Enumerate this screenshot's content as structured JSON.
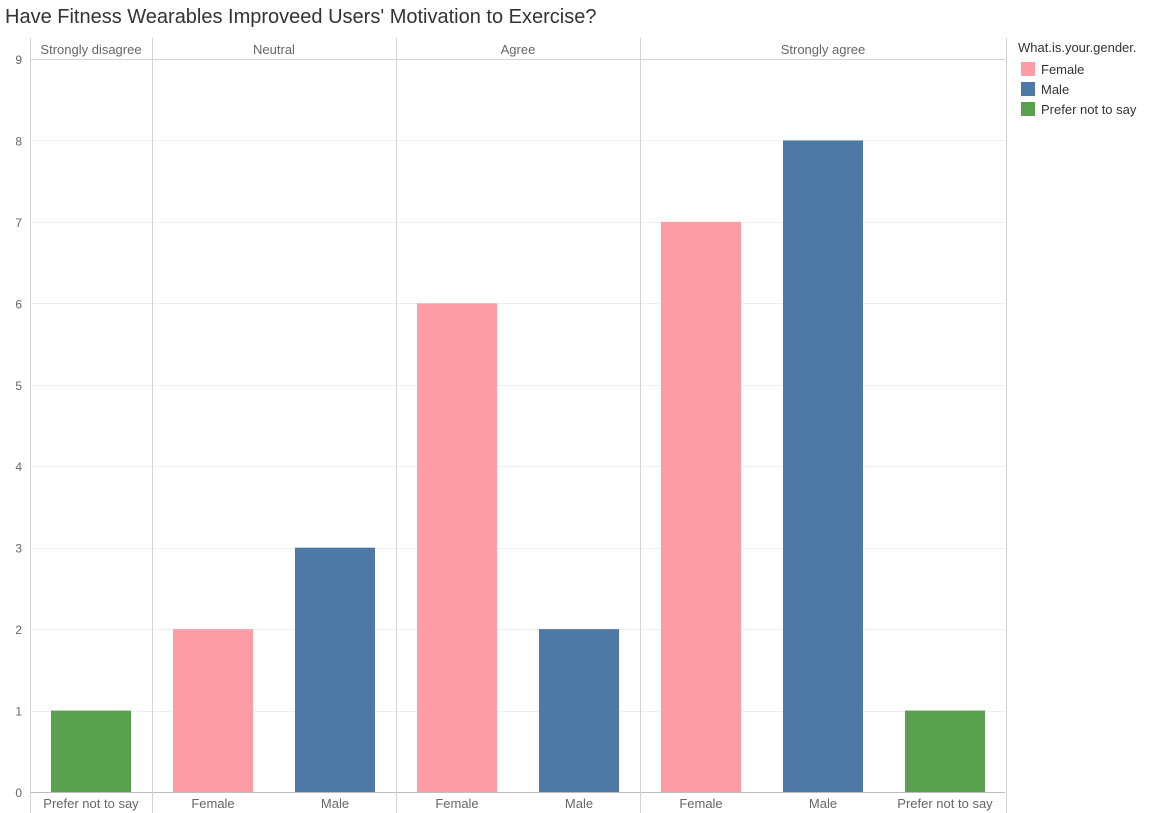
{
  "title": "Have Fitness Wearables Improveed Users' Motivation to Exercise?",
  "colors": {
    "Female": "#ff9da7",
    "Male": "#4e79a7",
    "Prefer not to say": "#59a14f"
  },
  "legend": {
    "title": "What.is.your.gender.",
    "items": [
      {
        "label": "Female",
        "color": "#ff9da7"
      },
      {
        "label": "Male",
        "color": "#4e79a7"
      },
      {
        "label": "Prefer not to say",
        "color": "#59a14f"
      }
    ],
    "placement": "right"
  },
  "chart_data": {
    "type": "bar",
    "title": "Have Fitness Wearables Improveed Users' Motivation to Exercise?",
    "xlabel": "",
    "ylabel": "",
    "ylim": [
      0,
      9
    ],
    "yticks": [
      0,
      1,
      2,
      3,
      4,
      5,
      6,
      7,
      8,
      9
    ],
    "grid": true,
    "panels": [
      {
        "label": "Strongly disagree",
        "bars": [
          {
            "category": "Prefer not to say",
            "value": 1
          }
        ]
      },
      {
        "label": "Neutral",
        "bars": [
          {
            "category": "Female",
            "value": 2
          },
          {
            "category": "Male",
            "value": 3
          }
        ]
      },
      {
        "label": "Agree",
        "bars": [
          {
            "category": "Female",
            "value": 6
          },
          {
            "category": "Male",
            "value": 2
          }
        ]
      },
      {
        "label": "Strongly agree",
        "bars": [
          {
            "category": "Female",
            "value": 7
          },
          {
            "category": "Male",
            "value": 8
          },
          {
            "category": "Prefer not to say",
            "value": 1
          }
        ]
      }
    ]
  }
}
